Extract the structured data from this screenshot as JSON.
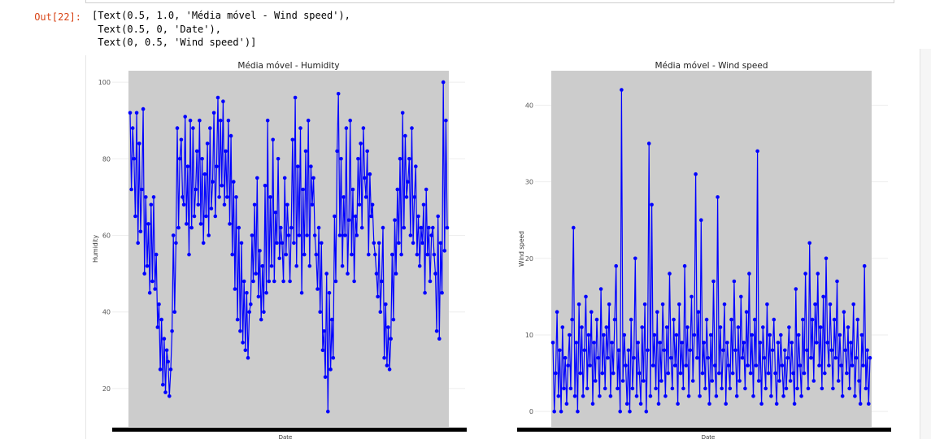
{
  "cell": {
    "prompt": "Out[22]:",
    "output_lines": [
      "[Text(0.5, 1.0, 'Média móvel - Wind speed'),",
      " Text(0.5, 0, 'Date'),",
      " Text(0, 0.5, 'Wind speed')]"
    ]
  },
  "colors": {
    "line": "#0000ff",
    "plot_bg": "#cccccc",
    "prompt": "#d84315"
  },
  "chart_data": [
    {
      "type": "line",
      "title": "Média móvel - Humidity",
      "xlabel": "Date",
      "ylabel": "Humidity",
      "ylim": [
        10,
        103
      ],
      "yticks": [
        20,
        40,
        60,
        80,
        100
      ],
      "marker": "circle",
      "series": [
        {
          "values": [
            92,
            72,
            88,
            80,
            65,
            92,
            58,
            84,
            61,
            72,
            93,
            50,
            70,
            52,
            63,
            45,
            68,
            48,
            70,
            46,
            55,
            36,
            42,
            25,
            38,
            21,
            33,
            19,
            30,
            27,
            18,
            25,
            35,
            60,
            40,
            58,
            88,
            62,
            80,
            85,
            70,
            68,
            91,
            63,
            78,
            55,
            90,
            62,
            88,
            65,
            72,
            82,
            68,
            90,
            63,
            80,
            58,
            76,
            65,
            84,
            60,
            88,
            67,
            74,
            92,
            65,
            78,
            96,
            70,
            90,
            73,
            95,
            68,
            82,
            70,
            90,
            63,
            86,
            55,
            74,
            46,
            70,
            38,
            62,
            35,
            58,
            32,
            48,
            30,
            45,
            28,
            40,
            42,
            60,
            48,
            68,
            50,
            75,
            44,
            56,
            38,
            52,
            40,
            73,
            45,
            90,
            48,
            70,
            52,
            85,
            48,
            66,
            58,
            80,
            54,
            62,
            58,
            48,
            75,
            55,
            68,
            60,
            48,
            62,
            85,
            58,
            96,
            52,
            78,
            60,
            88,
            45,
            72,
            55,
            82,
            60,
            90,
            52,
            78,
            68,
            75,
            60,
            55,
            46,
            62,
            40,
            58,
            30,
            35,
            23,
            50,
            14,
            45,
            25,
            38,
            28,
            65,
            48,
            82,
            97,
            60,
            80,
            52,
            70,
            60,
            88,
            50,
            64,
            90,
            55,
            72,
            48,
            65,
            60,
            80,
            68,
            84,
            62,
            88,
            75,
            70,
            82,
            55,
            76,
            65,
            68,
            58,
            55,
            50,
            44,
            58,
            40,
            48,
            62,
            28,
            42,
            26,
            36,
            25,
            33,
            55,
            38,
            64,
            50,
            72,
            58,
            80,
            55,
            92,
            62,
            86,
            70,
            74,
            80,
            60,
            88,
            58,
            70,
            78,
            55,
            65,
            52,
            62,
            58,
            68,
            45,
            72,
            55,
            62,
            48,
            60,
            62,
            55,
            50,
            35,
            65,
            33,
            58,
            45,
            100,
            56,
            90,
            62
          ]
        }
      ]
    },
    {
      "type": "line",
      "title": "Média móvel - Wind speed",
      "xlabel": "Date",
      "ylabel": "Wind speed",
      "ylim": [
        -2,
        44.5
      ],
      "yticks": [
        0,
        10,
        20,
        30,
        40
      ],
      "marker": "circle",
      "series": [
        {
          "values": [
            9,
            0,
            5,
            13,
            2,
            8,
            0,
            11,
            3,
            7,
            1,
            6,
            10,
            3,
            12,
            24,
            2,
            9,
            0,
            14,
            5,
            11,
            2,
            8,
            15,
            3,
            10,
            6,
            13,
            1,
            9,
            4,
            12,
            7,
            2,
            16,
            5,
            10,
            3,
            11,
            7,
            14,
            2,
            9,
            5,
            12,
            19,
            3,
            8,
            0,
            42,
            4,
            10,
            6,
            1,
            8,
            0,
            12,
            3,
            7,
            20,
            2,
            9,
            5,
            1,
            11,
            4,
            14,
            0,
            8,
            35,
            2,
            27,
            6,
            10,
            3,
            13,
            1,
            9,
            4,
            14,
            8,
            2,
            11,
            5,
            18,
            7,
            3,
            12,
            6,
            10,
            1,
            14,
            5,
            9,
            3,
            19,
            6,
            11,
            2,
            8,
            15,
            4,
            10,
            31,
            7,
            13,
            2,
            25,
            5,
            9,
            3,
            12,
            7,
            1,
            10,
            4,
            17,
            6,
            2,
            28,
            5,
            11,
            3,
            8,
            14,
            1,
            9,
            6,
            3,
            12,
            5,
            17,
            8,
            2,
            11,
            4,
            15,
            7,
            9,
            3,
            13,
            6,
            18,
            5,
            10,
            2,
            12,
            6,
            34,
            4,
            9,
            1,
            11,
            7,
            3,
            14,
            5,
            10,
            2,
            8,
            12,
            5,
            1,
            9,
            4,
            10,
            6,
            2,
            8,
            3,
            7,
            11,
            4,
            9,
            5,
            1,
            16,
            3,
            10,
            6,
            2,
            12,
            5,
            18,
            8,
            3,
            22,
            7,
            12,
            4,
            14,
            9,
            18,
            6,
            11,
            3,
            15,
            5,
            20,
            9,
            6,
            14,
            8,
            3,
            12,
            7,
            17,
            4,
            10,
            6,
            2,
            13,
            8,
            5,
            11,
            3,
            9,
            6,
            14,
            2,
            7,
            12,
            4,
            1,
            10,
            6,
            19,
            3,
            8,
            1,
            7
          ]
        }
      ]
    }
  ]
}
